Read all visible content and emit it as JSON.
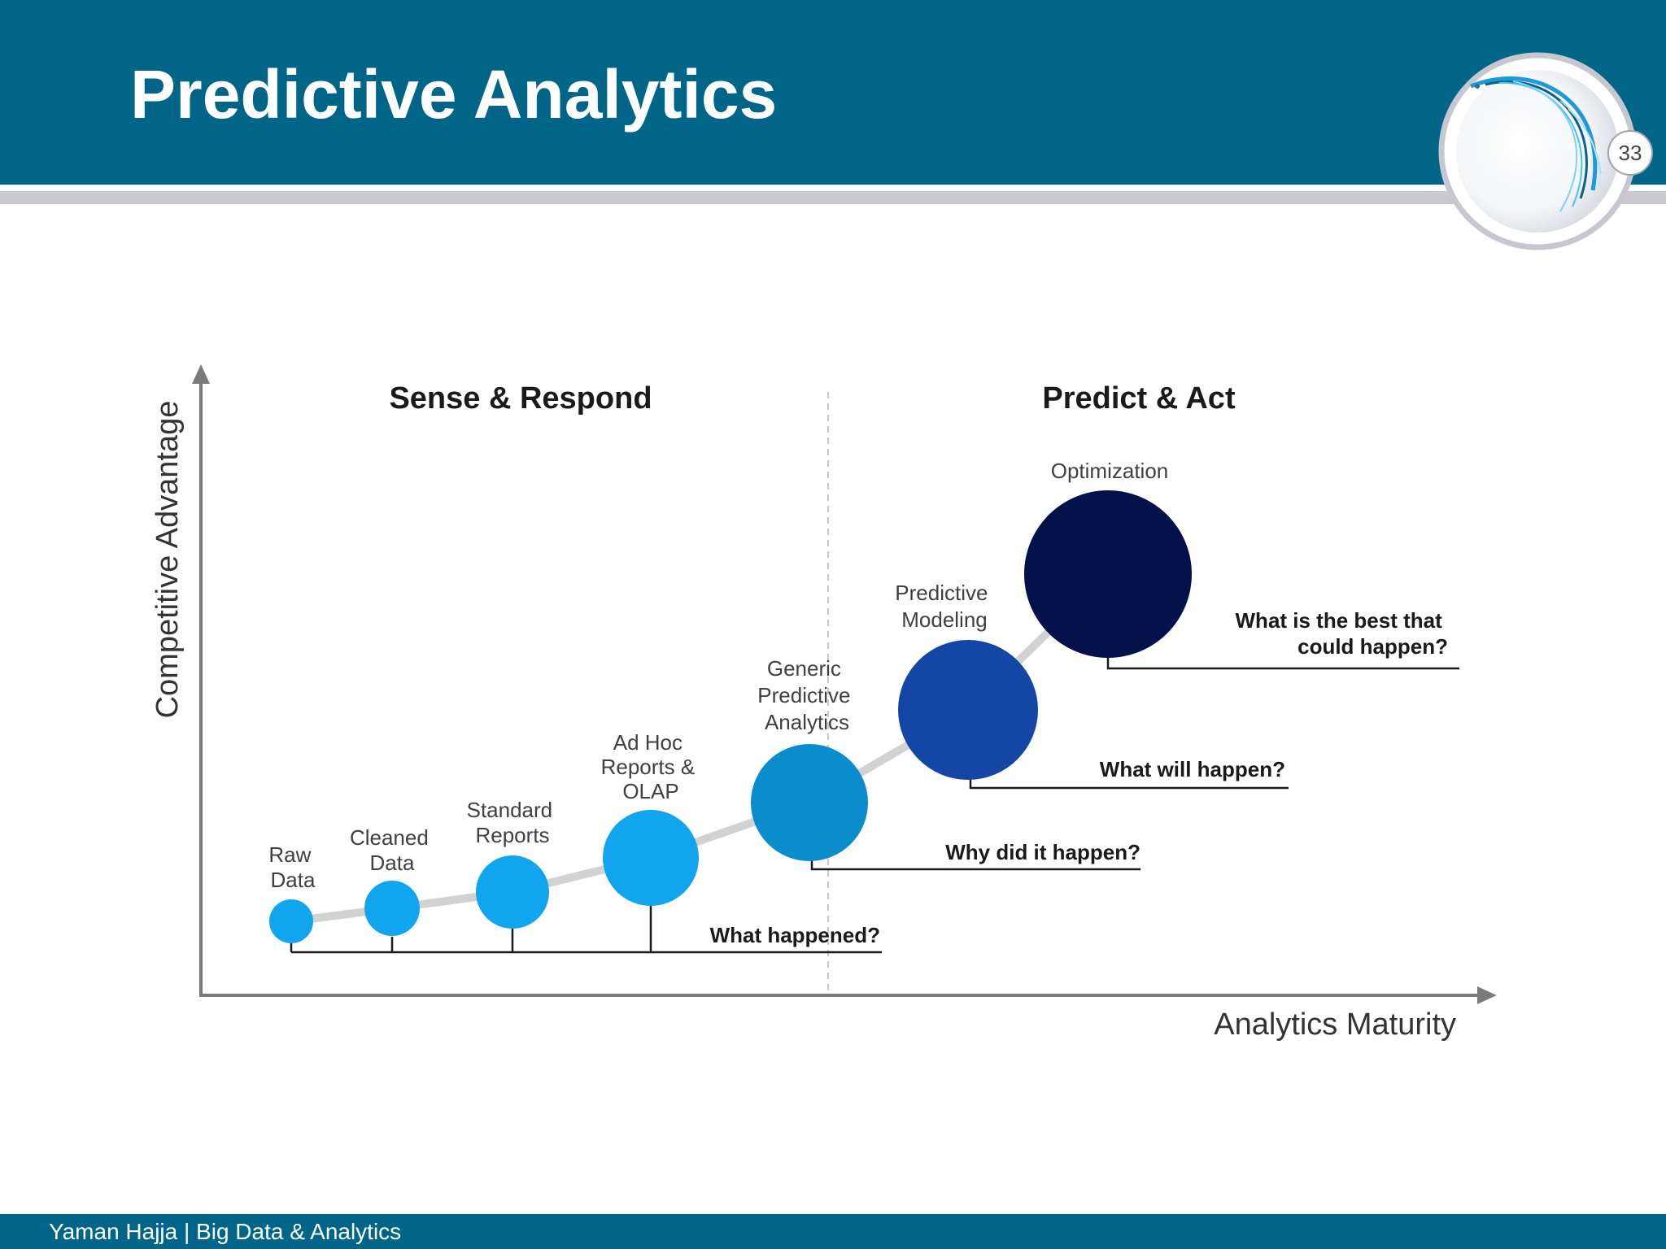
{
  "slide": {
    "title": "Predictive Analytics",
    "number": "33",
    "footer": "Yaman Hajja | Big Data & Analytics"
  },
  "diagram": {
    "y_axis_label": "Competitive Advantage",
    "x_axis_label": "Analytics Maturity",
    "sections": [
      "Sense & Respond",
      "Predict & Act"
    ],
    "stages": [
      {
        "label_lines": [
          "Raw",
          "Data"
        ],
        "color": "#12a5ef"
      },
      {
        "label_lines": [
          "Cleaned",
          "Data"
        ],
        "color": "#12a5ef"
      },
      {
        "label_lines": [
          "Standard",
          "Reports"
        ],
        "color": "#12a5ef"
      },
      {
        "label_lines": [
          "Ad Hoc",
          "Reports &",
          "OLAP"
        ],
        "color": "#12a5ef"
      },
      {
        "label_lines": [
          "Generic",
          "Predictive",
          "Analytics"
        ],
        "color": "#0a8ccd"
      },
      {
        "label_lines": [
          "Predictive",
          "Modeling"
        ],
        "color": "#1446a6"
      },
      {
        "label_lines": [
          "Optimization"
        ],
        "color": "#03114b"
      }
    ],
    "questions": [
      {
        "lines": [
          "What happened?"
        ]
      },
      {
        "lines": [
          "Why did it happen?"
        ]
      },
      {
        "lines": [
          "What will happen?"
        ]
      },
      {
        "lines": [
          "What is the best that",
          "could happen?"
        ]
      }
    ]
  },
  "colors": {
    "header": "#006587",
    "rule": "#c9c9cf",
    "axis": "#7a7a7a",
    "curve": "#d2d2d2"
  }
}
